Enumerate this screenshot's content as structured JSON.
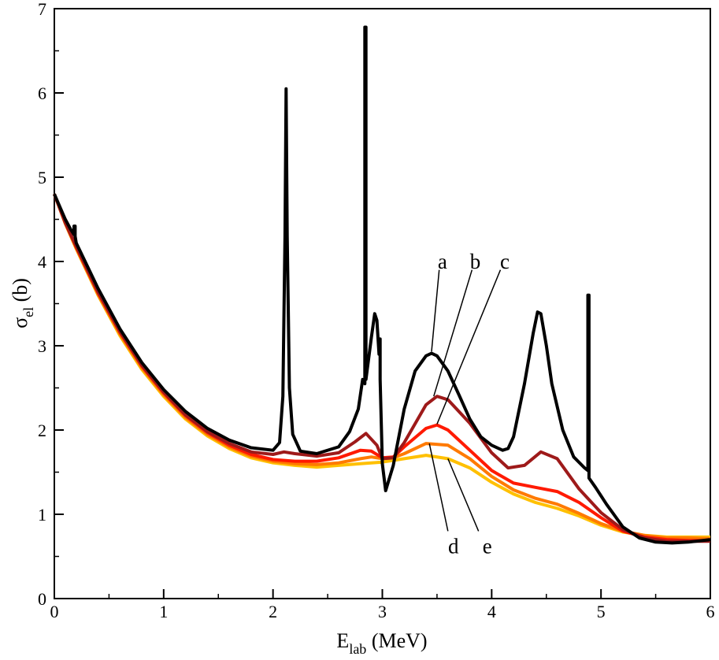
{
  "chart_data": {
    "type": "line",
    "title": "",
    "xlabel": {
      "main": "E",
      "sub": "lab",
      "rest": " (MeV)"
    },
    "ylabel": {
      "main": "σ",
      "sub": "el",
      "rest": " (b)"
    },
    "xlim": [
      0,
      6
    ],
    "ylim": [
      0,
      7
    ],
    "xticks": [
      0,
      1,
      2,
      3,
      4,
      5,
      6
    ],
    "yticks": [
      0,
      1,
      2,
      3,
      4,
      5,
      6,
      7
    ],
    "xtick_labels": [
      "0",
      "1",
      "2",
      "3",
      "4",
      "5",
      "6"
    ],
    "ytick_labels": [
      "0",
      "1",
      "2",
      "3",
      "4",
      "5",
      "6",
      "7"
    ],
    "grid": false,
    "series": [
      {
        "name": "e",
        "color": "#FFC000",
        "x": [
          0,
          0.1,
          0.2,
          0.4,
          0.6,
          0.8,
          1.0,
          1.2,
          1.4,
          1.6,
          1.8,
          2.0,
          2.2,
          2.4,
          2.6,
          2.8,
          3.0,
          3.2,
          3.4,
          3.6,
          3.8,
          4.0,
          4.2,
          4.4,
          4.6,
          4.8,
          5.0,
          5.2,
          5.4,
          5.6,
          5.8,
          6.0
        ],
        "y": [
          4.8,
          4.45,
          4.15,
          3.6,
          3.12,
          2.72,
          2.4,
          2.13,
          1.93,
          1.78,
          1.67,
          1.61,
          1.58,
          1.56,
          1.58,
          1.6,
          1.62,
          1.66,
          1.7,
          1.66,
          1.55,
          1.38,
          1.24,
          1.14,
          1.07,
          0.98,
          0.87,
          0.79,
          0.75,
          0.73,
          0.73,
          0.73
        ]
      },
      {
        "name": "d",
        "color": "#FF7A00",
        "x": [
          0,
          0.1,
          0.2,
          0.4,
          0.6,
          0.8,
          1.0,
          1.2,
          1.4,
          1.6,
          1.8,
          2.0,
          2.2,
          2.4,
          2.6,
          2.8,
          2.9,
          3.0,
          3.1,
          3.2,
          3.4,
          3.6,
          3.8,
          4.0,
          4.2,
          4.4,
          4.6,
          4.8,
          5.0,
          5.2,
          5.4,
          5.6,
          5.8,
          6.0
        ],
        "y": [
          4.8,
          4.45,
          4.16,
          3.61,
          3.14,
          2.74,
          2.42,
          2.15,
          1.95,
          1.8,
          1.69,
          1.63,
          1.6,
          1.59,
          1.61,
          1.66,
          1.68,
          1.66,
          1.67,
          1.72,
          1.84,
          1.82,
          1.66,
          1.45,
          1.29,
          1.19,
          1.12,
          1.01,
          0.89,
          0.8,
          0.75,
          0.72,
          0.72,
          0.71
        ]
      },
      {
        "name": "c",
        "color": "#FF1A00",
        "x": [
          0,
          0.1,
          0.2,
          0.4,
          0.6,
          0.8,
          1.0,
          1.2,
          1.4,
          1.6,
          1.8,
          2.0,
          2.2,
          2.4,
          2.6,
          2.8,
          2.9,
          3.0,
          3.1,
          3.2,
          3.4,
          3.5,
          3.6,
          3.8,
          4.0,
          4.2,
          4.4,
          4.6,
          4.8,
          5.0,
          5.2,
          5.4,
          5.6,
          5.8,
          6.0
        ],
        "y": [
          4.8,
          4.46,
          4.17,
          3.63,
          3.16,
          2.76,
          2.44,
          2.17,
          1.97,
          1.82,
          1.71,
          1.65,
          1.63,
          1.63,
          1.67,
          1.76,
          1.75,
          1.67,
          1.68,
          1.8,
          2.02,
          2.06,
          2.0,
          1.76,
          1.52,
          1.37,
          1.32,
          1.27,
          1.14,
          0.96,
          0.8,
          0.73,
          0.7,
          0.69,
          0.69
        ]
      },
      {
        "name": "b",
        "color": "#9E1A1A",
        "x": [
          0,
          0.1,
          0.2,
          0.4,
          0.6,
          0.8,
          1.0,
          1.2,
          1.4,
          1.6,
          1.8,
          2.0,
          2.1,
          2.2,
          2.4,
          2.6,
          2.75,
          2.85,
          2.95,
          3.0,
          3.1,
          3.2,
          3.4,
          3.5,
          3.6,
          3.8,
          4.0,
          4.15,
          4.3,
          4.45,
          4.6,
          4.8,
          5.0,
          5.2,
          5.4,
          5.6,
          5.8,
          6.0
        ],
        "y": [
          4.8,
          4.46,
          4.18,
          3.64,
          3.17,
          2.77,
          2.45,
          2.18,
          1.98,
          1.84,
          1.74,
          1.71,
          1.74,
          1.72,
          1.69,
          1.73,
          1.86,
          1.96,
          1.82,
          1.66,
          1.67,
          1.85,
          2.3,
          2.4,
          2.36,
          2.08,
          1.73,
          1.55,
          1.58,
          1.74,
          1.66,
          1.3,
          1.02,
          0.82,
          0.72,
          0.68,
          0.68,
          0.68
        ]
      },
      {
        "name": "a",
        "color": "#000000",
        "x": [
          0,
          0.1,
          0.15,
          0.18,
          0.18,
          0.19,
          0.19,
          0.2,
          0.4,
          0.6,
          0.8,
          1.0,
          1.2,
          1.4,
          1.6,
          1.8,
          2.0,
          2.06,
          2.09,
          2.11,
          2.12,
          2.13,
          2.15,
          2.18,
          2.25,
          2.4,
          2.6,
          2.7,
          2.78,
          2.82,
          2.84,
          2.84,
          2.85,
          2.85,
          2.9,
          2.93,
          2.95,
          2.97,
          2.97,
          2.98,
          2.98,
          3.0,
          3.03,
          3.1,
          3.2,
          3.3,
          3.4,
          3.45,
          3.5,
          3.6,
          3.7,
          3.8,
          3.9,
          4.0,
          4.1,
          4.15,
          4.2,
          4.3,
          4.38,
          4.42,
          4.45,
          4.5,
          4.55,
          4.65,
          4.75,
          4.85,
          4.88,
          4.88,
          4.89,
          4.89,
          4.95,
          5.05,
          5.2,
          5.35,
          5.5,
          5.65,
          5.8,
          6.0
        ],
        "y": [
          4.8,
          4.5,
          4.38,
          4.32,
          4.42,
          4.42,
          4.3,
          4.22,
          3.68,
          3.2,
          2.8,
          2.48,
          2.22,
          2.02,
          1.88,
          1.79,
          1.76,
          1.85,
          2.4,
          4.3,
          6.05,
          4.3,
          2.5,
          1.95,
          1.75,
          1.72,
          1.8,
          1.98,
          2.25,
          2.6,
          2.55,
          6.78,
          6.78,
          2.6,
          3.1,
          3.38,
          3.3,
          2.9,
          3.08,
          3.08,
          2.6,
          1.6,
          1.28,
          1.58,
          2.25,
          2.7,
          2.88,
          2.91,
          2.88,
          2.7,
          2.42,
          2.13,
          1.92,
          1.82,
          1.76,
          1.78,
          1.92,
          2.55,
          3.15,
          3.4,
          3.38,
          3.0,
          2.55,
          2.0,
          1.68,
          1.55,
          1.52,
          3.6,
          3.6,
          1.43,
          1.32,
          1.12,
          0.85,
          0.72,
          0.67,
          0.66,
          0.67,
          0.7
        ]
      }
    ],
    "annotations": [
      {
        "label": "a",
        "text_x": 3.55,
        "text_y": 4.0,
        "line_from": [
          3.52,
          3.9
        ],
        "line_to": [
          3.45,
          2.93
        ]
      },
      {
        "label": "b",
        "text_x": 3.85,
        "text_y": 4.0,
        "line_from": [
          3.82,
          3.9
        ],
        "line_to": [
          3.47,
          2.4
        ]
      },
      {
        "label": "c",
        "text_x": 4.12,
        "text_y": 4.0,
        "line_from": [
          4.08,
          3.9
        ],
        "line_to": [
          3.5,
          2.07
        ]
      },
      {
        "label": "d",
        "text_x": 3.65,
        "text_y": 0.62,
        "line_from": [
          3.6,
          0.8
        ],
        "line_to": [
          3.43,
          1.84
        ]
      },
      {
        "label": "e",
        "text_x": 3.96,
        "text_y": 0.62,
        "line_from": [
          3.88,
          0.8
        ],
        "line_to": [
          3.6,
          1.66
        ]
      }
    ]
  }
}
